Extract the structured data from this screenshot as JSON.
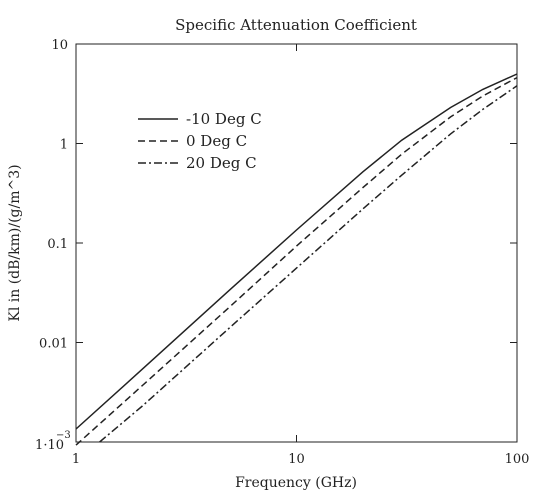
{
  "chart_data": {
    "type": "line",
    "title": "Specific Attenuation Coefficient",
    "xlabel": "Frequency (GHz)",
    "ylabel": "Kl in (dB/km)/(g/m^3)",
    "xscale": "log",
    "yscale": "log",
    "xlim": [
      1,
      100
    ],
    "ylim": [
      0.001,
      10
    ],
    "xticks": [
      1,
      10,
      100
    ],
    "xtick_labels": [
      "1",
      "10",
      "100"
    ],
    "yticks": [
      0.001,
      0.01,
      0.1,
      1,
      10
    ],
    "ytick_labels": [
      "1·10",
      "0.01",
      "0.1",
      "1",
      "10"
    ],
    "ytick_exponent": "−3",
    "grid": false,
    "legend": "upper-left",
    "series": [
      {
        "name": "-10 Deg C",
        "dash": "solid",
        "x": [
          1,
          2,
          5,
          10,
          20,
          30,
          50,
          70,
          100
        ],
        "y": [
          0.00135,
          0.0054,
          0.034,
          0.135,
          0.52,
          1.08,
          2.3,
          3.5,
          5.0
        ]
      },
      {
        "name": "0 Deg C",
        "dash": "dashed",
        "x": [
          1,
          2,
          5,
          10,
          20,
          30,
          50,
          70,
          100
        ],
        "y": [
          0.00093,
          0.0037,
          0.023,
          0.093,
          0.36,
          0.78,
          1.85,
          3.0,
          4.6
        ]
      },
      {
        "name": "20 Deg C",
        "dash": "dashdot",
        "x": [
          1.28,
          2,
          5,
          10,
          20,
          30,
          50,
          70,
          100
        ],
        "y": [
          0.001,
          0.0023,
          0.0142,
          0.056,
          0.22,
          0.48,
          1.25,
          2.2,
          3.8
        ]
      }
    ]
  }
}
